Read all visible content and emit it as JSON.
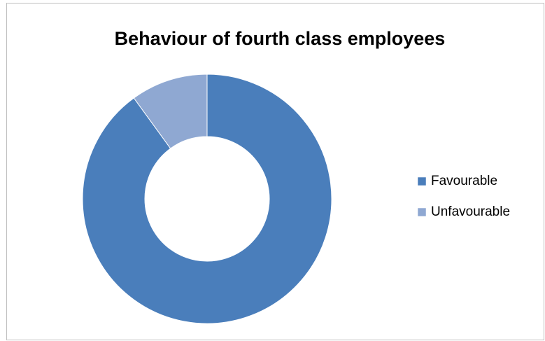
{
  "chart_data": {
    "type": "donut",
    "title": "Behaviour of fourth class employees",
    "categories": [
      "Favourable",
      "Unfavourable"
    ],
    "values": [
      90,
      10
    ],
    "colors": [
      "#4a7ebb",
      "#8fa8d2"
    ],
    "legend": "right"
  }
}
